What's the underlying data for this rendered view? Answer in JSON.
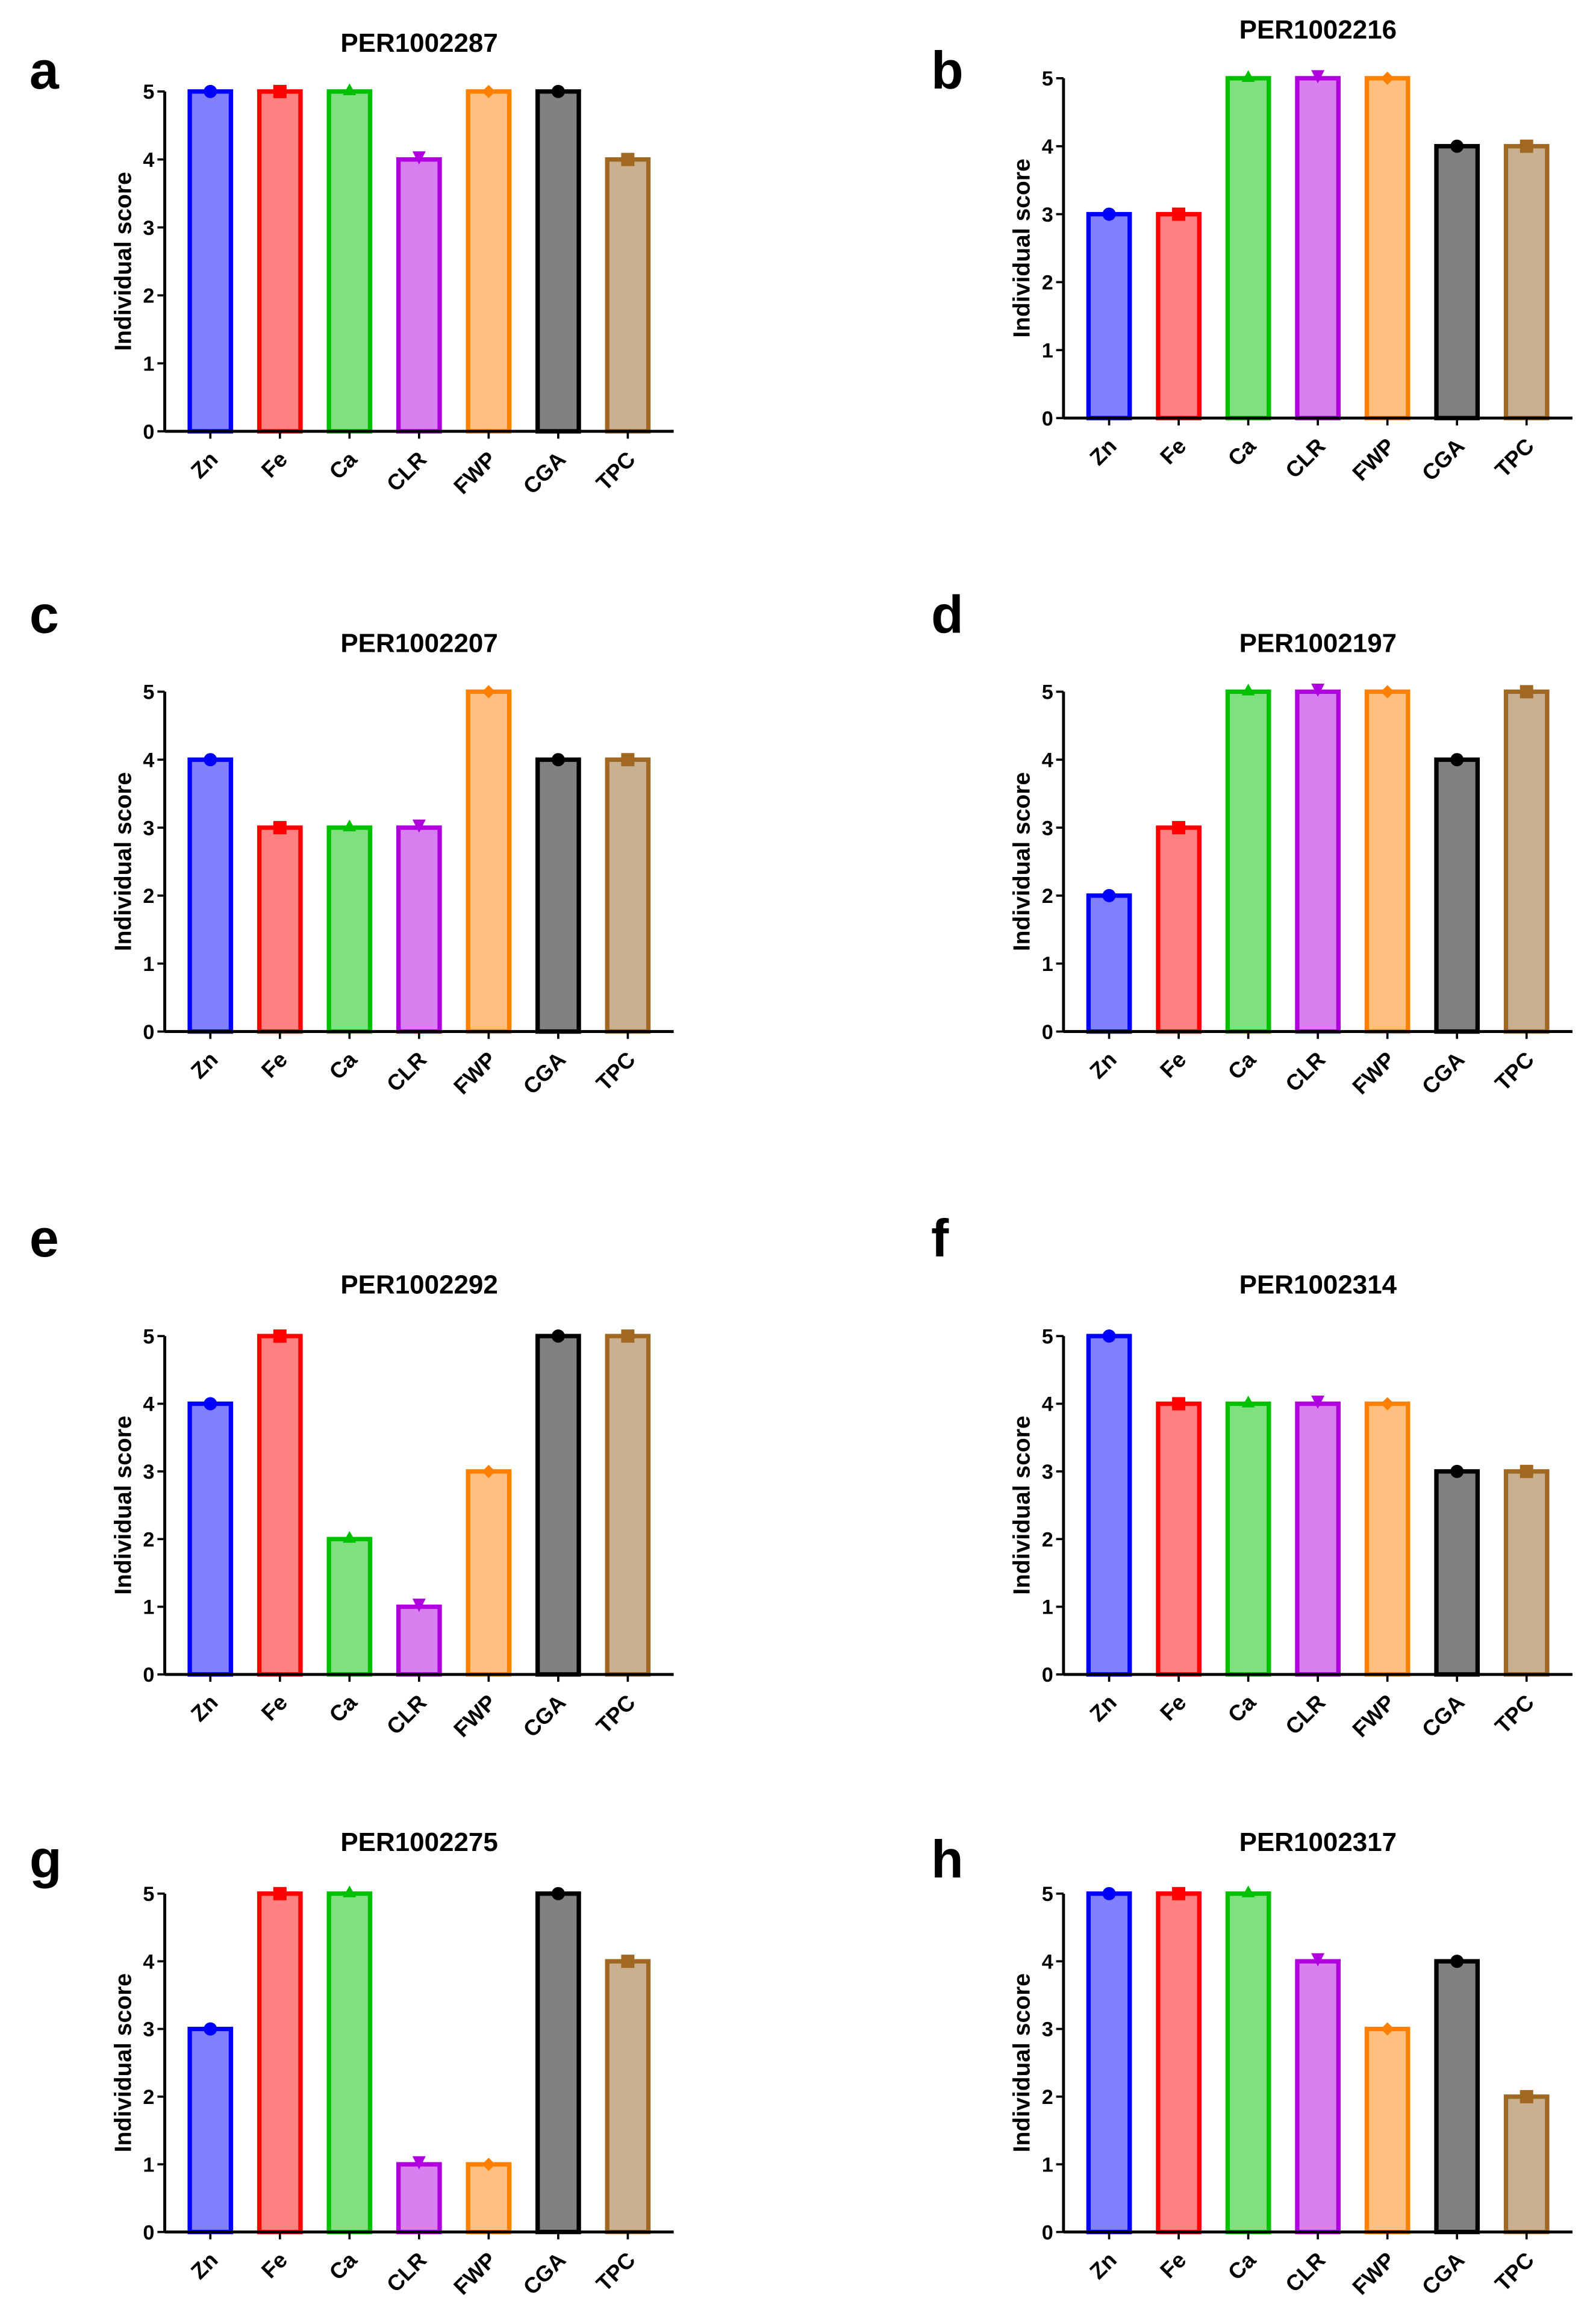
{
  "chart_data": {
    "type": "bar",
    "layout": "4x2 grid of bar charts",
    "categories": [
      "Zn",
      "Fe",
      "Ca",
      "CLR",
      "FWP",
      "CGA",
      "TPC"
    ],
    "ylabel": "Individual score",
    "ylim": [
      0,
      5
    ],
    "yticks": [
      0,
      1,
      2,
      3,
      4,
      5
    ],
    "grid": false,
    "series_style": [
      {
        "name": "Zn",
        "stroke": "#0000ff",
        "fill": "#8080ff",
        "marker": "circle"
      },
      {
        "name": "Fe",
        "stroke": "#ff0000",
        "fill": "#ff8080",
        "marker": "square"
      },
      {
        "name": "Ca",
        "stroke": "#00c000",
        "fill": "#80e080",
        "marker": "triangle-up"
      },
      {
        "name": "CLR",
        "stroke": "#b000e0",
        "fill": "#d880f0",
        "marker": "triangle-down"
      },
      {
        "name": "FWP",
        "stroke": "#ff8000",
        "fill": "#ffc080",
        "marker": "diamond"
      },
      {
        "name": "CGA",
        "stroke": "#000000",
        "fill": "#808080",
        "marker": "circle"
      },
      {
        "name": "TPC",
        "stroke": "#a06820",
        "fill": "#c8b090",
        "marker": "square"
      }
    ],
    "panels": [
      {
        "label": "a",
        "title": "PER1002287",
        "values": [
          5,
          5,
          5,
          4,
          5,
          5,
          4
        ]
      },
      {
        "label": "b",
        "title": "PER1002216",
        "values": [
          3,
          3,
          5,
          5,
          5,
          4,
          4
        ]
      },
      {
        "label": "c",
        "title": "PER1002207",
        "values": [
          4,
          3,
          3,
          3,
          5,
          4,
          4
        ]
      },
      {
        "label": "d",
        "title": "PER1002197",
        "values": [
          2,
          3,
          5,
          5,
          5,
          4,
          5
        ]
      },
      {
        "label": "e",
        "title": "PER1002292",
        "values": [
          4,
          5,
          2,
          1,
          3,
          5,
          5
        ]
      },
      {
        "label": "f",
        "title": "PER1002314",
        "values": [
          5,
          4,
          4,
          4,
          4,
          3,
          3
        ]
      },
      {
        "label": "g",
        "title": "PER1002275",
        "values": [
          3,
          5,
          5,
          1,
          1,
          5,
          4
        ]
      },
      {
        "label": "h",
        "title": "PER1002317",
        "values": [
          5,
          5,
          5,
          4,
          3,
          4,
          2
        ]
      }
    ]
  }
}
